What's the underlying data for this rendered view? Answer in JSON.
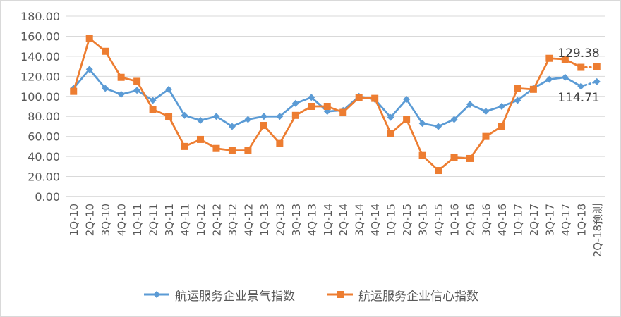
{
  "chart_data": {
    "type": "line",
    "categories": [
      "1Q-10",
      "2Q-10",
      "3Q-10",
      "4Q-10",
      "1Q-11",
      "2Q-11",
      "3Q-11",
      "4Q-11",
      "1Q-12",
      "2Q-12",
      "3Q-12",
      "4Q-12",
      "1Q-13",
      "2Q-13",
      "3Q-13",
      "4Q-13",
      "1Q-14",
      "2Q-14",
      "3Q-14",
      "4Q-14",
      "1Q-15",
      "2Q-15",
      "3Q-15",
      "4Q-15",
      "1Q-16",
      "2Q-16",
      "3Q-16",
      "4Q-16",
      "1Q-17",
      "2Q-17",
      "3Q-17",
      "4Q-17",
      "1Q-18",
      "2Q-18预测"
    ],
    "series": [
      {
        "name": "航运服务企业景气指数",
        "color": "#5b9bd5",
        "marker": "diamond",
        "values": [
          108,
          127,
          108,
          102,
          106,
          96,
          107,
          81,
          76,
          80,
          70,
          77,
          80,
          80,
          93,
          99,
          85,
          86,
          100,
          97,
          79,
          97,
          73,
          70,
          77,
          92,
          85,
          90,
          96,
          108,
          117,
          119,
          110,
          114.71
        ]
      },
      {
        "name": "航运服务企业信心指数",
        "color": "#ed7d31",
        "marker": "square",
        "values": [
          105,
          158,
          145,
          119,
          115,
          87,
          80,
          50,
          57,
          48,
          46,
          46,
          71,
          53,
          81,
          90,
          90,
          84,
          99,
          98,
          63,
          77,
          41,
          26,
          39,
          38,
          60,
          70,
          108,
          107,
          138,
          137,
          129,
          129.38
        ]
      }
    ],
    "forecast_last_point": true,
    "data_labels": [
      {
        "series": 1,
        "index": 33,
        "text": "129.38"
      },
      {
        "series": 0,
        "index": 33,
        "text": "114.71"
      }
    ],
    "ylim": [
      0,
      180
    ],
    "yticks": [
      "0.00",
      "20.00",
      "40.00",
      "60.00",
      "80.00",
      "100.00",
      "120.00",
      "140.00",
      "160.00",
      "180.00"
    ],
    "grid": true,
    "legend_position": "bottom"
  }
}
